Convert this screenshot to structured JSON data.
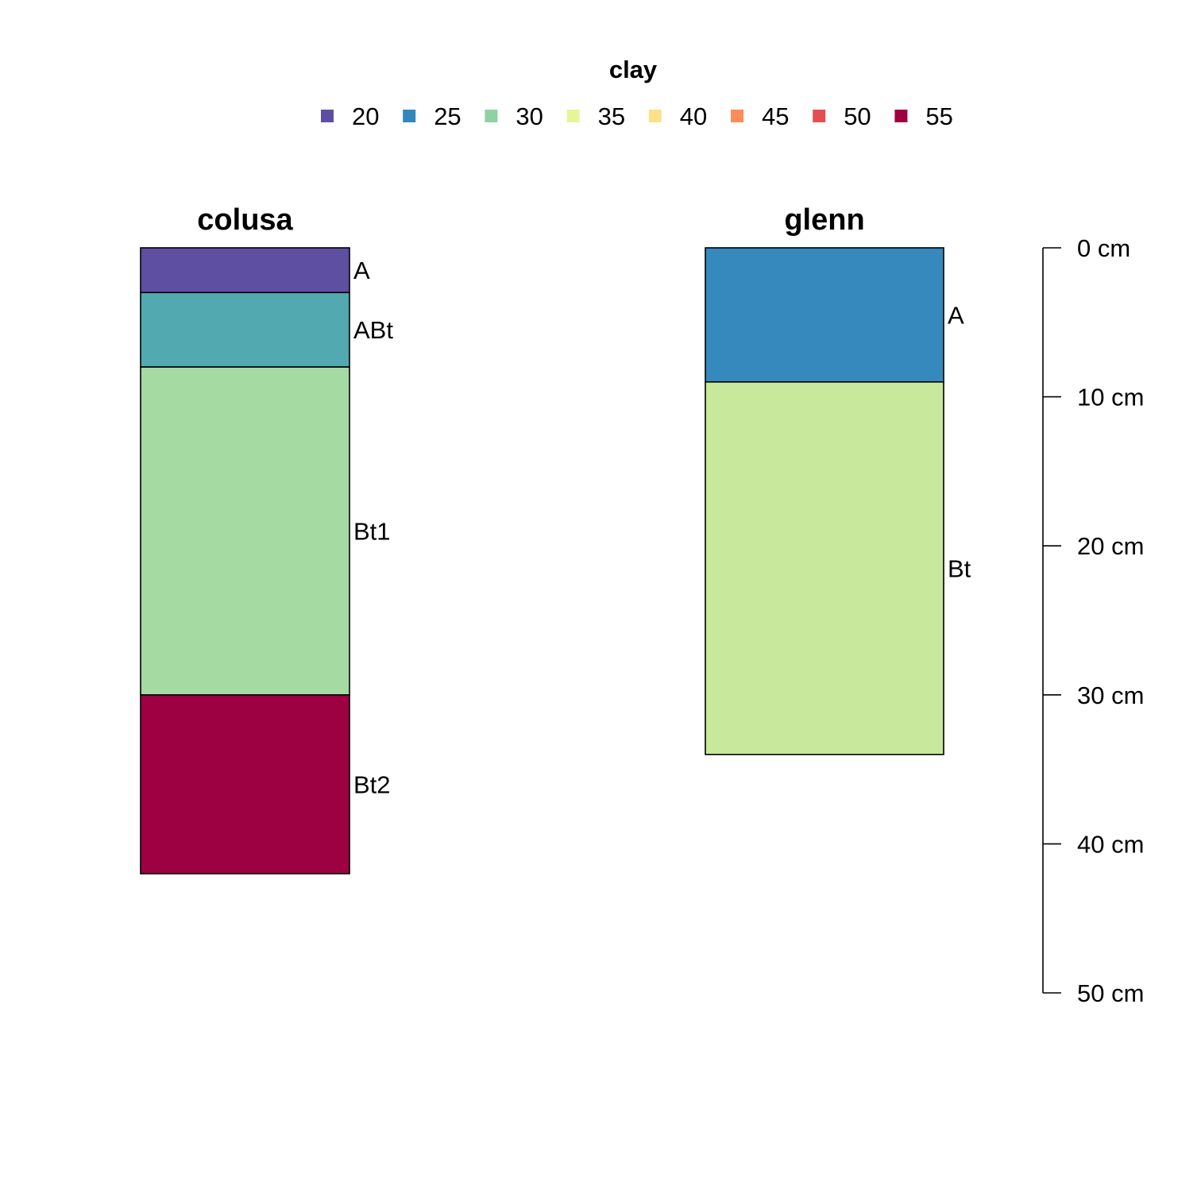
{
  "chart_data": {
    "type": "soil-profile",
    "legend": {
      "title": "clay",
      "entries": [
        {
          "label": "20",
          "color": "#5E4FA2"
        },
        {
          "label": "25",
          "color": "#3288BD"
        },
        {
          "label": "30",
          "color": "#8FD1A4"
        },
        {
          "label": "35",
          "color": "#E6F598"
        },
        {
          "label": "40",
          "color": "#FEE08B"
        },
        {
          "label": "45",
          "color": "#FC8D59"
        },
        {
          "label": "50",
          "color": "#E34F4F"
        },
        {
          "label": "55",
          "color": "#9E0142"
        }
      ]
    },
    "depth_axis": {
      "range": [
        0,
        50
      ],
      "ticks": [
        0,
        10,
        20,
        30,
        40,
        50
      ],
      "tick_labels": [
        "0 cm",
        "10 cm",
        "20 cm",
        "30 cm",
        "40 cm",
        "50 cm"
      ]
    },
    "profiles": [
      {
        "name": "colusa",
        "horizons": [
          {
            "name": "A",
            "top": 0,
            "bottom": 3,
            "clay": 21,
            "color": "#5E4FA2"
          },
          {
            "name": "ABt",
            "top": 3,
            "bottom": 8,
            "clay": 26,
            "color": "#52A9AF"
          },
          {
            "name": "Bt1",
            "top": 8,
            "bottom": 30,
            "clay": 31,
            "color": "#A5DAA3"
          },
          {
            "name": "Bt2",
            "top": 30,
            "bottom": 42,
            "clay": 55,
            "color": "#9E0142"
          }
        ]
      },
      {
        "name": "glenn",
        "horizons": [
          {
            "name": "A",
            "top": 0,
            "bottom": 9,
            "clay": 25,
            "color": "#3589BC"
          },
          {
            "name": "Bt",
            "top": 9,
            "bottom": 34,
            "clay": 34,
            "color": "#C8E89B"
          }
        ]
      }
    ]
  }
}
